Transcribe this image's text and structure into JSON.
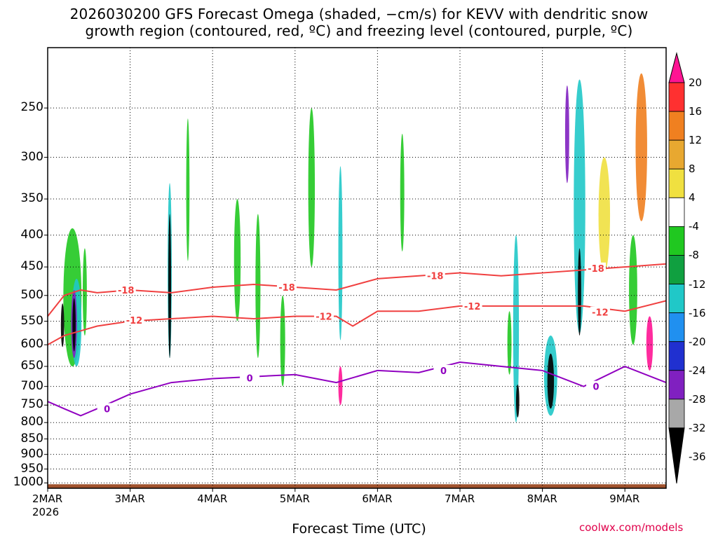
{
  "title": {
    "line1": "2026030200 GFS Forecast Omega (shaded, −cm/s) for KEVV with dendritic snow",
    "line2": "growth region (contoured, red, ºC) and freezing level (contoured, purple, ºC)"
  },
  "chart_data": {
    "type": "heatmap",
    "xlabel": "Forecast Time (UTC)",
    "x_ticks": [
      "2MAR",
      "3MAR",
      "4MAR",
      "5MAR",
      "6MAR",
      "7MAR",
      "8MAR",
      "9MAR"
    ],
    "x_year": "2026",
    "y_ticks": [
      250,
      300,
      350,
      400,
      450,
      500,
      550,
      600,
      650,
      700,
      750,
      800,
      850,
      900,
      950,
      1000
    ],
    "ylim": [
      1020,
      200
    ],
    "y_scale": "log-pressure",
    "xlim": [
      0,
      7.5
    ],
    "grid": true,
    "colorbar": {
      "labels": [
        "20",
        "16",
        "12",
        "8",
        "4",
        "-4",
        "-8",
        "-12",
        "-16",
        "-20",
        "-24",
        "-28",
        "-32",
        "-36"
      ],
      "colors": [
        "#ff1493",
        "#ff3030",
        "#f08020",
        "#e8a830",
        "#f0e040",
        "#ffffff",
        "#20c820",
        "#10a040",
        "#20c8c8",
        "#2090f0",
        "#2030d0",
        "#8020c0",
        "#a8a8a8",
        "#000000"
      ]
    },
    "omega_blobs": [
      {
        "x": 0.3,
        "p": 520,
        "w": 0.22,
        "h": 260,
        "c": "#20c820"
      },
      {
        "x": 0.35,
        "p": 560,
        "w": 0.12,
        "h": 180,
        "c": "#20c8c8"
      },
      {
        "x": 0.32,
        "p": 560,
        "w": 0.07,
        "h": 140,
        "c": "#8020c0"
      },
      {
        "x": 0.32,
        "p": 560,
        "w": 0.04,
        "h": 110,
        "c": "#000000"
      },
      {
        "x": 0.18,
        "p": 560,
        "w": 0.04,
        "h": 90,
        "c": "#000000"
      },
      {
        "x": 0.45,
        "p": 500,
        "w": 0.05,
        "h": 160,
        "c": "#20c820"
      },
      {
        "x": 1.48,
        "p": 480,
        "w": 0.05,
        "h": 300,
        "c": "#20c8c8"
      },
      {
        "x": 1.48,
        "p": 500,
        "w": 0.03,
        "h": 260,
        "c": "#000000"
      },
      {
        "x": 1.7,
        "p": 350,
        "w": 0.04,
        "h": 180,
        "c": "#20c820"
      },
      {
        "x": 2.3,
        "p": 450,
        "w": 0.08,
        "h": 200,
        "c": "#20c820"
      },
      {
        "x": 2.55,
        "p": 500,
        "w": 0.06,
        "h": 260,
        "c": "#20c820"
      },
      {
        "x": 2.85,
        "p": 600,
        "w": 0.06,
        "h": 200,
        "c": "#20c820"
      },
      {
        "x": 3.2,
        "p": 350,
        "w": 0.08,
        "h": 200,
        "c": "#20c820"
      },
      {
        "x": 3.55,
        "p": 450,
        "w": 0.05,
        "h": 280,
        "c": "#20c8c8"
      },
      {
        "x": 3.55,
        "p": 700,
        "w": 0.05,
        "h": 100,
        "c": "#ff1493"
      },
      {
        "x": 4.3,
        "p": 350,
        "w": 0.05,
        "h": 150,
        "c": "#20c820"
      },
      {
        "x": 5.6,
        "p": 600,
        "w": 0.05,
        "h": 140,
        "c": "#20c820"
      },
      {
        "x": 5.68,
        "p": 600,
        "w": 0.07,
        "h": 400,
        "c": "#20c8c8"
      },
      {
        "x": 5.7,
        "p": 740,
        "w": 0.04,
        "h": 90,
        "c": "#000000"
      },
      {
        "x": 6.1,
        "p": 680,
        "w": 0.16,
        "h": 200,
        "c": "#20c8c8"
      },
      {
        "x": 6.1,
        "p": 690,
        "w": 0.08,
        "h": 140,
        "c": "#000000"
      },
      {
        "x": 6.45,
        "p": 400,
        "w": 0.14,
        "h": 350,
        "c": "#20c8c8"
      },
      {
        "x": 6.45,
        "p": 500,
        "w": 0.04,
        "h": 160,
        "c": "#000000"
      },
      {
        "x": 6.3,
        "p": 280,
        "w": 0.05,
        "h": 100,
        "c": "#8020c0"
      },
      {
        "x": 6.75,
        "p": 380,
        "w": 0.14,
        "h": 160,
        "c": "#f0e040"
      },
      {
        "x": 7.2,
        "p": 300,
        "w": 0.14,
        "h": 160,
        "c": "#f08020"
      },
      {
        "x": 7.3,
        "p": 600,
        "w": 0.08,
        "h": 120,
        "c": "#ff1493"
      },
      {
        "x": 7.1,
        "p": 500,
        "w": 0.1,
        "h": 200,
        "c": "#20c820"
      }
    ],
    "contours": [
      {
        "label": "-18",
        "color": "#f04040",
        "x": [
          0,
          0.2,
          0.4,
          0.6,
          1.0,
          1.5,
          2.0,
          2.5,
          3.0,
          3.5,
          4.0,
          4.5,
          5.0,
          5.5,
          6.0,
          6.5,
          7.0,
          7.5
        ],
        "p": [
          540,
          500,
          490,
          495,
          490,
          495,
          485,
          480,
          485,
          490,
          470,
          465,
          460,
          465,
          460,
          455,
          450,
          445
        ]
      },
      {
        "label": "-12",
        "color": "#f04040",
        "x": [
          0,
          0.2,
          0.4,
          0.6,
          1.0,
          1.5,
          2.0,
          2.5,
          3.0,
          3.5,
          3.7,
          4.0,
          4.5,
          5.0,
          5.5,
          6.0,
          6.5,
          7.0,
          7.5
        ],
        "p": [
          600,
          580,
          570,
          560,
          550,
          545,
          540,
          545,
          540,
          540,
          560,
          530,
          530,
          520,
          520,
          520,
          520,
          530,
          510
        ]
      },
      {
        "label": "0",
        "color": "#9000c0",
        "x": [
          0,
          0.2,
          0.4,
          0.6,
          1.0,
          1.5,
          2.0,
          2.5,
          3.0,
          3.5,
          4.0,
          4.5,
          5.0,
          5.5,
          6.0,
          6.5,
          7.0,
          7.5
        ],
        "p": [
          740,
          760,
          780,
          760,
          720,
          690,
          680,
          675,
          670,
          690,
          660,
          665,
          640,
          650,
          660,
          700,
          650,
          690
        ]
      }
    ],
    "contour_labels": [
      {
        "text": "-18",
        "x": 0.95,
        "p": 490,
        "color": "#f04040"
      },
      {
        "text": "-18",
        "x": 2.9,
        "p": 485,
        "color": "#f04040"
      },
      {
        "text": "-18",
        "x": 4.7,
        "p": 465,
        "color": "#f04040"
      },
      {
        "text": "-18",
        "x": 6.65,
        "p": 452,
        "color": "#f04040"
      },
      {
        "text": "-12",
        "x": 1.05,
        "p": 548,
        "color": "#f04040"
      },
      {
        "text": "-12",
        "x": 3.35,
        "p": 540,
        "color": "#f04040"
      },
      {
        "text": "-12",
        "x": 5.15,
        "p": 520,
        "color": "#f04040"
      },
      {
        "text": "-12",
        "x": 6.7,
        "p": 532,
        "color": "#f04040"
      },
      {
        "text": "0",
        "x": 0.72,
        "p": 760,
        "color": "#9000c0"
      },
      {
        "text": "0",
        "x": 2.45,
        "p": 678,
        "color": "#9000c0"
      },
      {
        "text": "0",
        "x": 4.8,
        "p": 660,
        "color": "#9000c0"
      },
      {
        "text": "0",
        "x": 6.65,
        "p": 700,
        "color": "#9000c0"
      }
    ]
  },
  "footer": {
    "xlabel": "Forecast Time (UTC)",
    "credit": "coolwx.com/models"
  }
}
